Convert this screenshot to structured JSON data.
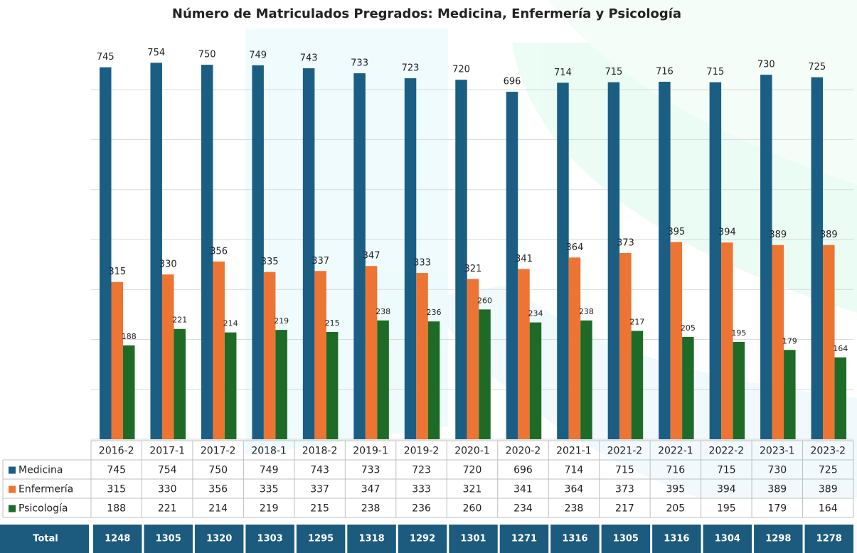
{
  "chart_data": {
    "type": "bar",
    "title": "Número de Matriculados Pregrados: Medicina, Enfermería y Psicología",
    "categories": [
      "2016-2",
      "2017-1",
      "2017-2",
      "2018-1",
      "2018-2",
      "2019-1",
      "2019-2",
      "2020-1",
      "2020-2",
      "2021-1",
      "2021-2",
      "2022-1",
      "2022-2",
      "2023-1",
      "2023-2"
    ],
    "series": [
      {
        "name": "Medicina",
        "color": "#1b5e84",
        "values": [
          745,
          754,
          750,
          749,
          743,
          733,
          723,
          720,
          696,
          714,
          715,
          716,
          715,
          730,
          725
        ]
      },
      {
        "name": "Enfermería",
        "color": "#ed7433",
        "values": [
          315,
          330,
          356,
          335,
          337,
          347,
          333,
          321,
          341,
          364,
          373,
          395,
          394,
          389,
          389
        ]
      },
      {
        "name": "Psicología",
        "color": "#1e6b28",
        "values": [
          188,
          221,
          214,
          219,
          215,
          238,
          236,
          260,
          234,
          238,
          217,
          205,
          195,
          179,
          164
        ]
      }
    ],
    "ylim": [
      0,
      800
    ],
    "yticks": [
      0,
      100,
      200,
      300,
      400,
      500,
      600,
      700
    ],
    "grid": true
  },
  "table_footer": {
    "label": "Total",
    "values": [
      1248,
      1305,
      1320,
      1303,
      1295,
      1318,
      1292,
      1301,
      1271,
      1316,
      1305,
      1316,
      1304,
      1298,
      1278
    ],
    "color": "#1c5a7e"
  }
}
